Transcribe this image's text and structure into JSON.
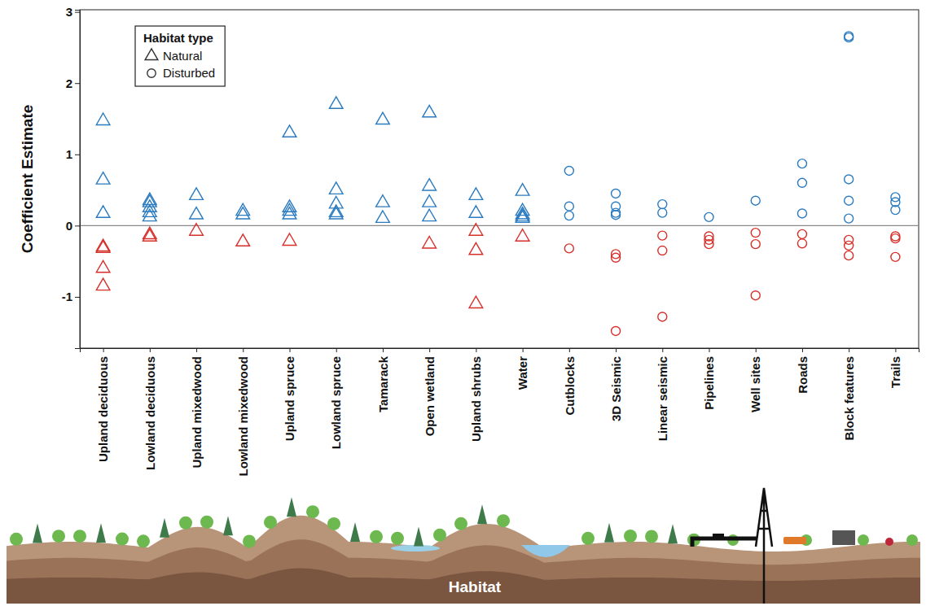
{
  "chart_data": {
    "type": "scatter",
    "y_label": "Coefficient Estimate",
    "x_label": "Habitat",
    "legend_title": "Habitat type",
    "legend": "top-left",
    "categories": [
      "Upland deciduous",
      "Lowland deciduous",
      "Upland mixedwood",
      "Lowland mixedwood",
      "Upland spruce",
      "Lowland spruce",
      "Tamarack",
      "Open wetland",
      "Upland shrubs",
      "Water",
      "Cutblocks",
      "3D Seismic",
      "Linear seismic",
      "Pipelines",
      "Well sites",
      "Roads",
      "Block features",
      "Trails"
    ],
    "ylim": [
      -1.72,
      3.03
    ],
    "yticks": [
      -1,
      0,
      1,
      2,
      3
    ],
    "hline": 0,
    "series": [
      {
        "name": "Natural",
        "marker": "triangle",
        "x": [
          "Upland deciduous",
          "Upland deciduous",
          "Upland deciduous",
          "Upland deciduous",
          "Upland deciduous",
          "Upland deciduous",
          "Upland deciduous",
          "Lowland deciduous",
          "Lowland deciduous",
          "Lowland deciduous",
          "Lowland deciduous",
          "Lowland deciduous",
          "Lowland deciduous",
          "Lowland deciduous",
          "Upland mixedwood",
          "Upland mixedwood",
          "Upland mixedwood",
          "Lowland mixedwood",
          "Lowland mixedwood",
          "Lowland mixedwood",
          "Upland spruce",
          "Upland spruce",
          "Upland spruce",
          "Upland spruce",
          "Upland spruce",
          "Lowland spruce",
          "Lowland spruce",
          "Lowland spruce",
          "Lowland spruce",
          "Lowland spruce",
          "Tamarack",
          "Tamarack",
          "Tamarack",
          "Open wetland",
          "Open wetland",
          "Open wetland",
          "Open wetland",
          "Open wetland",
          "Upland shrubs",
          "Upland shrubs",
          "Upland shrubs",
          "Upland shrubs",
          "Upland shrubs",
          "Water",
          "Water",
          "Water",
          "Water",
          "Water",
          "Water"
        ],
        "values": [
          1.47,
          0.64,
          0.17,
          -0.3,
          -0.32,
          -0.6,
          -0.85,
          0.35,
          0.32,
          0.25,
          0.18,
          0.12,
          -0.13,
          -0.16,
          0.42,
          0.15,
          -0.08,
          0.2,
          0.15,
          -0.23,
          1.3,
          0.25,
          0.2,
          0.15,
          -0.22,
          1.7,
          0.5,
          0.3,
          0.18,
          0.15,
          1.48,
          0.32,
          0.1,
          1.58,
          0.55,
          0.32,
          0.12,
          -0.26,
          0.42,
          0.17,
          -0.08,
          -0.35,
          -1.1,
          0.48,
          0.2,
          0.15,
          0.12,
          0.1,
          -0.16
        ],
        "colors": [
          "#2b7bc0",
          "#2b7bc0",
          "#2b7bc0",
          "#d7302a",
          "#d7302a",
          "#d7302a",
          "#d7302a",
          "#2b7bc0",
          "#2b7bc0",
          "#2b7bc0",
          "#2b7bc0",
          "#2b7bc0",
          "#d7302a",
          "#d7302a",
          "#2b7bc0",
          "#2b7bc0",
          "#d7302a",
          "#2b7bc0",
          "#2b7bc0",
          "#d7302a",
          "#2b7bc0",
          "#2b7bc0",
          "#2b7bc0",
          "#2b7bc0",
          "#d7302a",
          "#2b7bc0",
          "#2b7bc0",
          "#2b7bc0",
          "#2b7bc0",
          "#2b7bc0",
          "#2b7bc0",
          "#2b7bc0",
          "#2b7bc0",
          "#2b7bc0",
          "#2b7bc0",
          "#2b7bc0",
          "#2b7bc0",
          "#d7302a",
          "#2b7bc0",
          "#2b7bc0",
          "#d7302a",
          "#d7302a",
          "#d7302a",
          "#2b7bc0",
          "#2b7bc0",
          "#2b7bc0",
          "#2b7bc0",
          "#2b7bc0",
          "#d7302a"
        ]
      },
      {
        "name": "Disturbed",
        "marker": "circle",
        "x": [
          "Cutblocks",
          "Cutblocks",
          "Cutblocks",
          "Cutblocks",
          "3D Seismic",
          "3D Seismic",
          "3D Seismic",
          "3D Seismic",
          "3D Seismic",
          "3D Seismic",
          "3D Seismic",
          "Linear seismic",
          "Linear seismic",
          "Linear seismic",
          "Linear seismic",
          "Linear seismic",
          "Pipelines",
          "Pipelines",
          "Pipelines",
          "Pipelines",
          "Well sites",
          "Well sites",
          "Well sites",
          "Well sites",
          "Roads",
          "Roads",
          "Roads",
          "Roads",
          "Roads",
          "Block features",
          "Block features",
          "Block features",
          "Block features",
          "Block features",
          "Block features",
          "Block features",
          "Block features",
          "Trails",
          "Trails",
          "Trails",
          "Trails",
          "Trails",
          "Trails"
        ],
        "values": [
          0.77,
          0.27,
          0.14,
          -0.32,
          0.45,
          0.27,
          0.18,
          0.15,
          -0.4,
          -0.45,
          -1.48,
          0.3,
          0.18,
          -0.14,
          -0.35,
          -1.28,
          0.12,
          -0.15,
          -0.2,
          -0.26,
          0.35,
          -0.1,
          -0.26,
          -0.98,
          0.87,
          0.6,
          0.17,
          -0.12,
          -0.25,
          2.66,
          2.64,
          0.65,
          0.35,
          0.1,
          -0.2,
          -0.28,
          -0.42,
          0.4,
          0.33,
          0.22,
          -0.15,
          -0.18,
          -0.44
        ],
        "colors": [
          "#2b7bc0",
          "#2b7bc0",
          "#2b7bc0",
          "#d7302a",
          "#2b7bc0",
          "#2b7bc0",
          "#2b7bc0",
          "#2b7bc0",
          "#d7302a",
          "#d7302a",
          "#d7302a",
          "#2b7bc0",
          "#2b7bc0",
          "#d7302a",
          "#d7302a",
          "#d7302a",
          "#2b7bc0",
          "#d7302a",
          "#d7302a",
          "#d7302a",
          "#2b7bc0",
          "#d7302a",
          "#d7302a",
          "#d7302a",
          "#2b7bc0",
          "#2b7bc0",
          "#2b7bc0",
          "#d7302a",
          "#d7302a",
          "#2b7bc0",
          "#2b7bc0",
          "#2b7bc0",
          "#2b7bc0",
          "#2b7bc0",
          "#d7302a",
          "#d7302a",
          "#d7302a",
          "#2b7bc0",
          "#2b7bc0",
          "#2b7bc0",
          "#d7302a",
          "#d7302a",
          "#d7302a"
        ]
      }
    ]
  }
}
